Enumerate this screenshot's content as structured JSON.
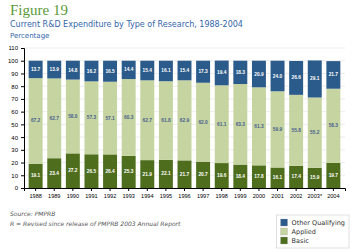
{
  "chart_data": {
    "type": "bar",
    "title": "Figure 19",
    "subtitle": "Current R&D Expenditure by Type of Research, 1988-2004",
    "y_label": "Percentage",
    "categories": [
      "1988",
      "1989",
      "1990",
      "1991",
      "1992",
      "1993",
      "1994",
      "1995",
      "1996",
      "1997",
      "1998",
      "1999",
      "2000",
      "2001",
      "2002",
      "2003*",
      "2004"
    ],
    "series": [
      {
        "name": "Basic",
        "color": "#4e6e1e",
        "values": [
          19.1,
          23.4,
          27.2,
          26.5,
          26.4,
          25.3,
          21.9,
          22.1,
          21.7,
          20.7,
          19.6,
          18.4,
          17.8,
          16.1,
          17.4,
          15.9,
          19.7
        ],
        "value_labels": [
          "19.1",
          "23.4",
          "27.2",
          "26.5",
          "26.4",
          "25.3",
          "21.9",
          "22.1",
          "21.7",
          "20.7",
          "19.6",
          "18.4",
          "17.8",
          "16.1",
          "17.4",
          "15.9",
          "19.7"
        ]
      },
      {
        "name": "Applied",
        "color": "#c5d4a0",
        "values": [
          67.2,
          62.7,
          58.0,
          57.3,
          57.1,
          60.3,
          62.7,
          61.8,
          62.9,
          62.0,
          61.1,
          63.3,
          61.3,
          59.9,
          55.8,
          55.2,
          58.3
        ],
        "value_labels": [
          "67.2",
          "62.7",
          "58.0",
          "57.3",
          "57.1",
          "60.3",
          "62.7",
          "61.8",
          "62.9",
          "62.0",
          "61.1",
          "63.3",
          "61.3",
          "59.9",
          "55.8",
          "55.2",
          "58.3"
        ]
      },
      {
        "name": "Other Qualifying",
        "color": "#2b5b8a",
        "values": [
          13.7,
          13.9,
          14.8,
          16.2,
          16.5,
          14.4,
          15.4,
          16.1,
          15.4,
          17.3,
          19.4,
          18.3,
          20.9,
          24.0,
          26.6,
          29.1,
          21.7
        ],
        "value_labels": [
          "13.7",
          "13.9",
          "14.8",
          "16.2",
          "16.5",
          "14.4",
          "15.4",
          "16.1",
          "15.4",
          "17.3",
          "19.4",
          "18.3",
          "20.9",
          "24.0",
          "26.6",
          "29.1",
          "21.7"
        ]
      }
    ],
    "annotations": [
      "Source: PMPRB",
      "R = Revised since release of PMPRB 2003 Annual Report"
    ],
    "stacked": true,
    "data_labels": true,
    "ylim": [
      0,
      110
    ],
    "yticks": [
      0,
      10,
      20,
      30,
      40,
      50,
      60,
      70,
      80,
      90,
      100,
      110
    ],
    "grid": true,
    "legend": "bottom-right"
  }
}
